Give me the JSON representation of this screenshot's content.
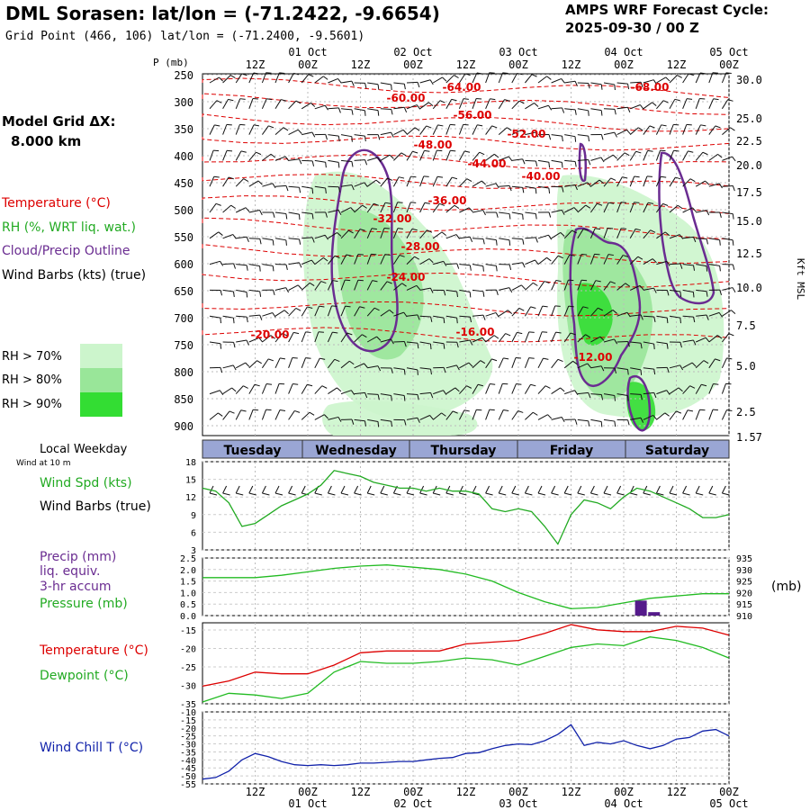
{
  "header": {
    "title": "DML Sorasen:  lat/lon = (-71.2422, -9.6654)",
    "grid_point": "Grid Point (466, 106) lat/lon = (-71.2400, -9.5601)",
    "cycle_line1": "AMPS WRF Forecast Cycle:",
    "cycle_line2": "2025-09-30 / 00  Z",
    "model_grid_label": "Model Grid ΔX:",
    "model_grid_value": "8.000 km"
  },
  "legend": {
    "temperature": "Temperature (°C)",
    "rh": "RH (%, WRT liq. wat.)",
    "cloud": "Cloud/Precip Outline",
    "wind_barbs": "Wind Barbs (kts) (true)",
    "rh70": "RH > 70%",
    "rh80": "RH > 80%",
    "rh90": "RH > 90%"
  },
  "colors": {
    "temperature": "#dd0000",
    "rh": "#22aa22",
    "cloud": "#6a2c91",
    "rh70": "#ccf5cc",
    "rh80": "#99e699",
    "rh90": "#33dd33",
    "pressure": "#22bb22",
    "dewpoint": "#22bb22",
    "wind_chill": "#1122aa",
    "precip": "#551a8b",
    "day_bar": "#9aa6d4"
  },
  "time_axis": {
    "top_labels": [
      "12Z",
      "00Z",
      "12Z",
      "00Z",
      "12Z",
      "00Z",
      "12Z",
      "00Z",
      "12Z",
      "00Z"
    ],
    "date_labels": [
      "01 Oct",
      "02 Oct",
      "03 Oct",
      "04 Oct",
      "05 Oct"
    ],
    "day_labels": [
      "Tuesday",
      "Wednesday",
      "Thursday",
      "Friday",
      "Saturday"
    ]
  },
  "cross_section": {
    "p_label": "P (mb)",
    "pressure_ticks": [
      "250",
      "300",
      "350",
      "400",
      "450",
      "500",
      "550",
      "600",
      "650",
      "700",
      "750",
      "800",
      "850",
      "900"
    ],
    "height_ticks": [
      "30.0",
      "25.0",
      "22.5",
      "20.0",
      "17.5",
      "15.0",
      "12.5",
      "10.0",
      "7.5",
      "5.0",
      "2.5",
      "1.57"
    ],
    "height_axis_label": "Kft MSL",
    "temp_labels": [
      "-64.00",
      "-68.00",
      "-60.00",
      "-56.00",
      "-52.00",
      "-48.00",
      "-44.00",
      "-40.00",
      "-36.00",
      "-32.00",
      "-28.00",
      "-24.00",
      "-20.00",
      "-16.00",
      "-12.00"
    ]
  },
  "panels": {
    "local_weekday": "Local Weekday",
    "wind_at_10m": "Wind at 10 m",
    "wind_spd_label": "Wind Spd (kts)",
    "wind_barbs_label": "Wind Barbs (true)",
    "precip_label1": "Precip (mm)",
    "precip_label2": "liq. equiv.",
    "precip_label3": "3-hr accum",
    "pressure_label": "Pressure (mb)",
    "mb_unit": "(mb)",
    "temp_label": "Temperature (°C)",
    "dew_label": "Dewpoint (°C)",
    "wind_chill_label": "Wind Chill T (°C)"
  },
  "chart_data": [
    {
      "type": "line",
      "name": "surface wind speed",
      "ylim": [
        3,
        18
      ],
      "yticks": [
        "18",
        "15",
        "12",
        "9",
        "6",
        "3"
      ],
      "x_hours": [
        0,
        3,
        6,
        9,
        12,
        15,
        18,
        21,
        24,
        27,
        30,
        33,
        36,
        39,
        42,
        45,
        48,
        51,
        54,
        57,
        60,
        63,
        66,
        69,
        72,
        75,
        78,
        81,
        84,
        87,
        90,
        93,
        96,
        99,
        102,
        105,
        108,
        111,
        114,
        117,
        120
      ],
      "series": [
        {
          "values": [
            13.5,
            13,
            11,
            7,
            7.5,
            9,
            10.5,
            11.5,
            12.5,
            14,
            16.5,
            16,
            15.5,
            14.5,
            14,
            13.5,
            13.5,
            13,
            13.5,
            13,
            13,
            12.5,
            10,
            9.5,
            10,
            9.5,
            7,
            4,
            9,
            11.5,
            11,
            10,
            12,
            13.5,
            13,
            12,
            11,
            10,
            8.5,
            8.5,
            9
          ]
        }
      ]
    },
    {
      "type": "line",
      "name": "surface pressure",
      "y_left_ticks": [
        "2.5",
        "2.0",
        "1.5",
        "1.0",
        "0.5",
        "0.0"
      ],
      "y_right_ticks": [
        "935",
        "930",
        "925",
        "920",
        "915",
        "910"
      ],
      "ylim_left": [
        0,
        2.5
      ],
      "ylim_right": [
        910,
        935
      ],
      "x_hours": [
        0,
        6,
        12,
        18,
        24,
        30,
        36,
        42,
        48,
        54,
        60,
        66,
        72,
        78,
        84,
        90,
        96,
        102,
        108,
        114,
        120
      ],
      "series": [
        {
          "values": [
            926.5,
            926.5,
            926.5,
            927.5,
            929,
            930.5,
            931.5,
            932,
            931,
            930,
            928,
            925,
            920,
            916,
            913,
            913.5,
            915.5,
            917.5,
            918.5,
            919.5,
            919.5
          ]
        }
      ],
      "precip": {
        "x_hours": [
          99,
          102
        ],
        "values": [
          0.65,
          0.15
        ]
      }
    },
    {
      "type": "line",
      "name": "temperature / dewpoint",
      "ylim": [
        -35,
        -12
      ],
      "yticks": [
        "-15",
        "-20",
        "-25",
        "-30",
        "-35"
      ],
      "x_hours": [
        0,
        6,
        12,
        18,
        24,
        30,
        36,
        42,
        48,
        54,
        60,
        66,
        72,
        78,
        84,
        90,
        96,
        102,
        108,
        114,
        120
      ],
      "series": [
        {
          "values": [
            -30,
            -28.5,
            -26,
            -26.5,
            -26.5,
            -24,
            -20.5,
            -20,
            -20,
            -20,
            -18,
            -17.5,
            -17,
            -15,
            -12.5,
            -14,
            -14.5,
            -14.5,
            -13,
            -13.5,
            -15.5
          ]
        },
        {
          "values": [
            -34.5,
            -32,
            -32.5,
            -33.5,
            -32,
            -26,
            -23,
            -23.5,
            -23.5,
            -23,
            -22,
            -22.5,
            -24,
            -21.5,
            -19,
            -18,
            -18.5,
            -16,
            -17,
            -19,
            -22
          ]
        }
      ]
    },
    {
      "type": "line",
      "name": "wind chill",
      "ylim": [
        -55,
        -10
      ],
      "yticks": [
        "-10",
        "-15",
        "-20",
        "-25",
        "-30",
        "-35",
        "-40",
        "-45",
        "-50",
        "-55"
      ],
      "x_hours": [
        0,
        3,
        6,
        9,
        12,
        15,
        18,
        21,
        24,
        27,
        30,
        33,
        36,
        39,
        42,
        45,
        48,
        51,
        54,
        57,
        60,
        63,
        66,
        69,
        72,
        75,
        78,
        81,
        84,
        87,
        90,
        93,
        96,
        99,
        102,
        105,
        108,
        111,
        114,
        117,
        120
      ],
      "series": [
        {
          "values": [
            -52,
            -51,
            -47,
            -40,
            -36,
            -38,
            -41,
            -43,
            -43.5,
            -43,
            -43.5,
            -43,
            -42,
            -42,
            -41.5,
            -41,
            -41,
            -40,
            -39,
            -38.5,
            -36,
            -35.5,
            -33,
            -31,
            -30,
            -30.5,
            -28,
            -24,
            -18,
            -31,
            -29,
            -30,
            -28,
            -31,
            -33,
            -31,
            -27,
            -26,
            -22,
            -21,
            -25
          ]
        }
      ]
    }
  ]
}
